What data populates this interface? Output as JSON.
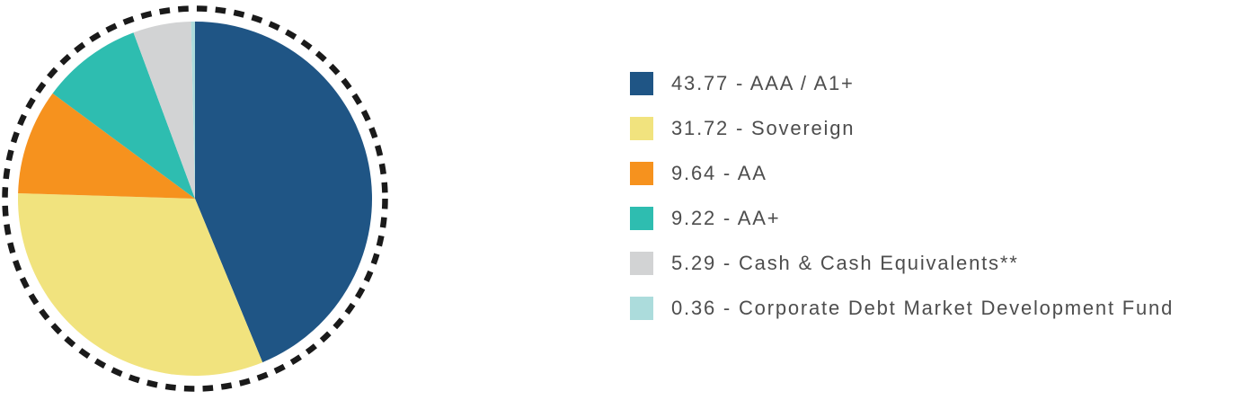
{
  "chart_data": {
    "type": "pie",
    "title": "",
    "legend_position": "right",
    "start_angle_deg": 0,
    "direction": "clockwise",
    "label_format": "{value} - {label}",
    "items": [
      {
        "label": "AAA / A1+",
        "value": 43.77,
        "color": "#1F5585"
      },
      {
        "label": "Sovereign",
        "value": 31.72,
        "color": "#F1E37E"
      },
      {
        "label": "AA",
        "value": 9.64,
        "color": "#F6921E"
      },
      {
        "label": "AA+",
        "value": 9.22,
        "color": "#2EBDB0"
      },
      {
        "label": "Cash & Cash Equivalents**",
        "value": 5.29,
        "color": "#D2D3D4"
      },
      {
        "label": "Corporate Debt Market Development Fund",
        "value": 0.36,
        "color": "#ACDCDC"
      }
    ],
    "border": {
      "style": "dashed",
      "color": "#1A1A1A"
    },
    "text_color": "#4D4D4D",
    "background": "#FFFFFF"
  }
}
